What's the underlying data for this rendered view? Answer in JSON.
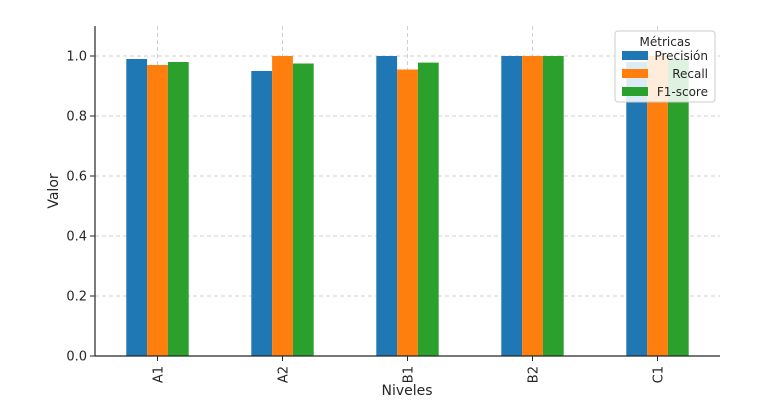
{
  "chart_data": {
    "type": "bar",
    "xlabel": "Niveles",
    "ylabel": "Valor",
    "categories": [
      "A1",
      "A2",
      "B1",
      "B2",
      "C1"
    ],
    "series": [
      {
        "name": "Precisión",
        "color": "#1f77b4",
        "values": [
          0.99,
          0.95,
          1.0,
          1.0,
          0.98
        ]
      },
      {
        "name": "Recall",
        "color": "#ff7f0e",
        "values": [
          0.97,
          1.0,
          0.955,
          1.0,
          1.0
        ]
      },
      {
        "name": "F1-score",
        "color": "#2ca02c",
        "values": [
          0.98,
          0.975,
          0.978,
          1.0,
          0.99
        ]
      }
    ],
    "ylim": [
      0,
      1.1
    ],
    "yticks": [
      "0.0",
      "0.2",
      "0.4",
      "0.6",
      "0.8",
      "1.0"
    ],
    "grid": true,
    "legend": {
      "title": "Métricas",
      "placement": "top-right"
    }
  }
}
